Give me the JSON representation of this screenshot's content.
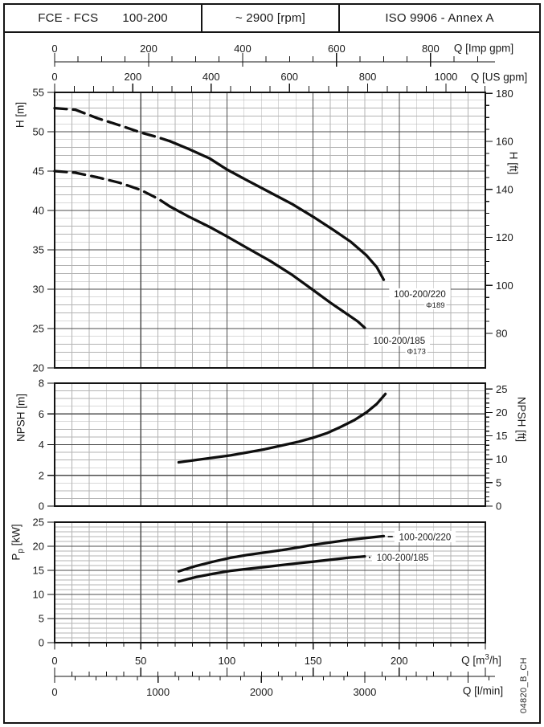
{
  "header": {
    "series_name": "FCE - FCS",
    "pump_size": "100-200",
    "speed": "~ 2900 [rpm]",
    "standard": "ISO 9906 - Annex A"
  },
  "watermark": "04820_B_CH",
  "flow_axis": {
    "xlim_m3h": [
      0,
      250
    ],
    "scales": {
      "imp_gpm": {
        "label": "Q [Imp gpm]",
        "ticks": [
          0,
          200,
          400,
          600,
          800
        ],
        "minor_step": 50,
        "minor_max": 900,
        "label_every": 200,
        "m3h_per_unit": 0.272766
      },
      "us_gpm": {
        "label": "Q [US gpm]",
        "ticks": [
          0,
          200,
          400,
          600,
          800,
          1000
        ],
        "minor_step": 50,
        "minor_max": 1100,
        "label_every": 200,
        "m3h_per_unit": 0.227125
      },
      "m3h": {
        "label_parts": [
          "Q [m",
          "3",
          "/h]"
        ],
        "ticks": [
          0,
          50,
          100,
          150,
          200
        ],
        "minor_step": 10,
        "minor_max": 250,
        "label_every": 50,
        "m3h_per_unit": 1
      },
      "l_min": {
        "label": "Q [l/min]",
        "ticks": [
          0,
          1000,
          2000,
          3000
        ],
        "minor_step": 200,
        "minor_max": 4200,
        "label_every": 1000,
        "m3h_per_unit": 0.06
      }
    }
  },
  "chart_data": [
    {
      "type": "line",
      "id": "head",
      "ylabel": "H [m]",
      "ylabel_right": "H [ft]",
      "ylim": [
        20,
        55
      ],
      "y_major": 5,
      "y_minor": 1,
      "yticks": [
        55,
        50,
        45,
        40,
        35,
        30,
        25,
        20
      ],
      "right_axis": {
        "unit": "ft",
        "ticks": [
          180,
          160,
          140,
          120,
          100,
          80
        ],
        "minor_step": 5,
        "m_per_unit": 0.3048
      },
      "grid": true,
      "series": [
        {
          "name": "100-200/220",
          "diameter": "Φ189",
          "dashed_until": 67,
          "points": [
            [
              0,
              53
            ],
            [
              12,
              52.8
            ],
            [
              25,
              51.7
            ],
            [
              38,
              50.8
            ],
            [
              50,
              49.9
            ],
            [
              60,
              49.3
            ],
            [
              67,
              48.8
            ],
            [
              78,
              47.8
            ],
            [
              90,
              46.6
            ],
            [
              100,
              45.2
            ],
            [
              112,
              43.8
            ],
            [
              125,
              42.3
            ],
            [
              138,
              40.8
            ],
            [
              150,
              39.2
            ],
            [
              162,
              37.5
            ],
            [
              172,
              36.0
            ],
            [
              181,
              34.3
            ],
            [
              187,
              32.8
            ],
            [
              191,
              31.2
            ]
          ]
        },
        {
          "name": "100-200/185",
          "diameter": "Φ173",
          "dashed_until": 67,
          "points": [
            [
              0,
              45
            ],
            [
              12,
              44.8
            ],
            [
              25,
              44.2
            ],
            [
              38,
              43.5
            ],
            [
              50,
              42.6
            ],
            [
              60,
              41.5
            ],
            [
              67,
              40.5
            ],
            [
              78,
              39.2
            ],
            [
              90,
              37.9
            ],
            [
              100,
              36.7
            ],
            [
              112,
              35.2
            ],
            [
              125,
              33.6
            ],
            [
              138,
              31.8
            ],
            [
              150,
              29.9
            ],
            [
              160,
              28.3
            ],
            [
              170,
              26.8
            ],
            [
              176,
              25.9
            ],
            [
              180,
              25.1
            ]
          ]
        }
      ],
      "annotations": [
        {
          "text": "100-200/220",
          "q": 212,
          "value": 29.4
        },
        {
          "text": "Φ189",
          "q": 221,
          "value": 28.0,
          "small": true
        },
        {
          "text": "100-200/185",
          "q": 200,
          "value": 23.5
        },
        {
          "text": "Φ173",
          "q": 210,
          "value": 22.1,
          "small": true
        }
      ]
    },
    {
      "type": "line",
      "id": "npsh",
      "ylabel": "NPSH [m]",
      "ylabel_right": "NPSH [ft]",
      "ylim": [
        0,
        8
      ],
      "y_major": 2,
      "y_minor": 0.5,
      "yticks": [
        8,
        6,
        4,
        2,
        0
      ],
      "right_axis": {
        "unit": "ft",
        "ticks": [
          25,
          20,
          15,
          10,
          5,
          0
        ],
        "minor_step": 1,
        "m_per_unit": 0.3048
      },
      "grid": true,
      "series": [
        {
          "name": "NPSH",
          "points": [
            [
              72,
              2.85
            ],
            [
              82,
              3.0
            ],
            [
              92,
              3.15
            ],
            [
              102,
              3.3
            ],
            [
              112,
              3.5
            ],
            [
              122,
              3.7
            ],
            [
              132,
              3.95
            ],
            [
              142,
              4.2
            ],
            [
              150,
              4.45
            ],
            [
              158,
              4.75
            ],
            [
              166,
              5.15
            ],
            [
              174,
              5.6
            ],
            [
              181,
              6.1
            ],
            [
              187,
              6.65
            ],
            [
              192,
              7.3
            ]
          ]
        }
      ],
      "annotations": []
    },
    {
      "type": "line",
      "id": "power",
      "ylabel_parts": [
        "P",
        "p",
        " [kW]"
      ],
      "ylim": [
        0,
        25
      ],
      "y_major": 5,
      "y_minor": 1,
      "yticks": [
        25,
        20,
        15,
        10,
        5,
        0
      ],
      "grid": true,
      "series": [
        {
          "name": "100-200/220",
          "points": [
            [
              72,
              14.8
            ],
            [
              82,
              15.9
            ],
            [
              92,
              16.8
            ],
            [
              102,
              17.6
            ],
            [
              112,
              18.2
            ],
            [
              122,
              18.7
            ],
            [
              132,
              19.2
            ],
            [
              142,
              19.8
            ],
            [
              150,
              20.3
            ],
            [
              160,
              20.8
            ],
            [
              170,
              21.3
            ],
            [
              180,
              21.7
            ],
            [
              191,
              22.1
            ]
          ]
        },
        {
          "name": "100-200/185",
          "points": [
            [
              72,
              12.7
            ],
            [
              82,
              13.6
            ],
            [
              92,
              14.3
            ],
            [
              102,
              14.9
            ],
            [
              112,
              15.3
            ],
            [
              122,
              15.7
            ],
            [
              132,
              16.1
            ],
            [
              142,
              16.5
            ],
            [
              150,
              16.8
            ],
            [
              160,
              17.2
            ],
            [
              170,
              17.6
            ],
            [
              180,
              17.9
            ]
          ]
        }
      ],
      "annotations": [
        {
          "text": "100-200/220",
          "q": 215,
          "value": 22.0,
          "leader_from_q": 192
        },
        {
          "text": "100-200/185",
          "q": 202,
          "value": 17.7,
          "leader_from_q": 181
        }
      ]
    }
  ]
}
